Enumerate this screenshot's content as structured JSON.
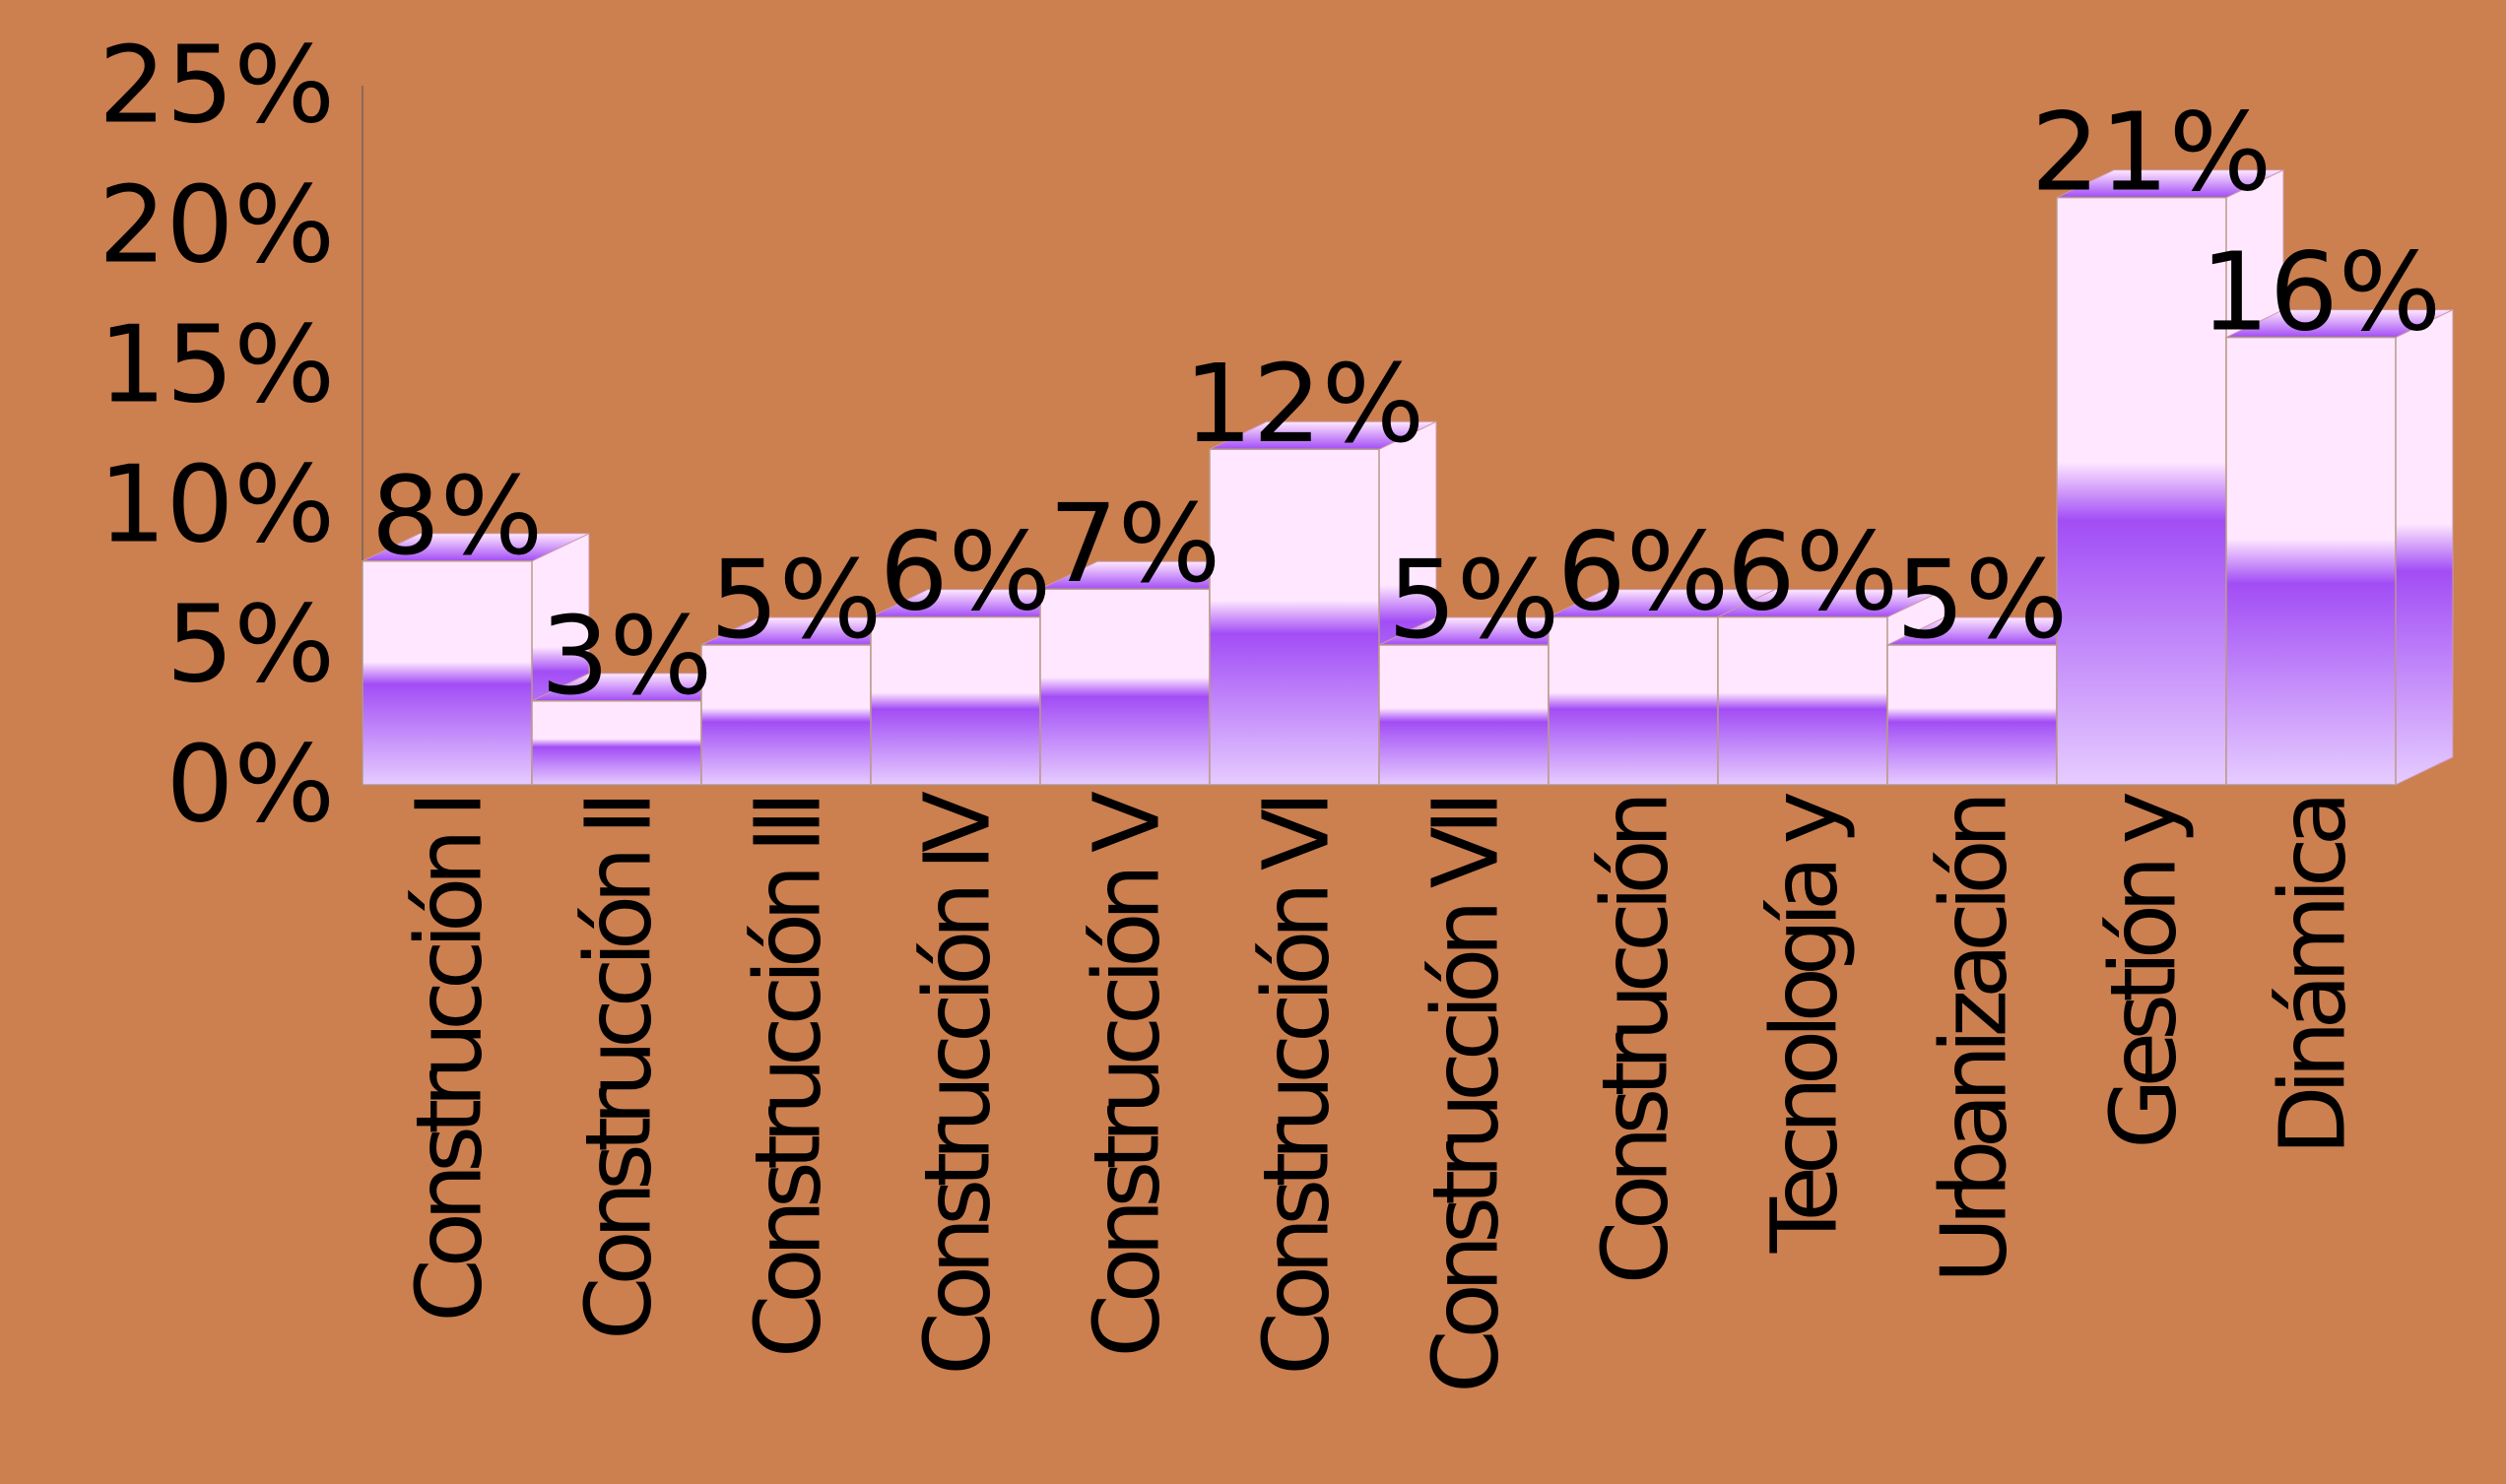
{
  "chart_data": {
    "type": "bar",
    "style": "3d",
    "categories": [
      "Construcción I",
      "Construcción II",
      "Construcción III",
      "Construcción IV",
      "Construcción V",
      "Construcción VI",
      "Construcción VII",
      "Construcción",
      "Tecnología y",
      "Urbanización",
      "Gestión y",
      "Dinámica"
    ],
    "values": [
      8,
      3,
      5,
      6,
      7,
      12,
      5,
      6,
      6,
      5,
      21,
      16
    ],
    "data_labels": [
      "8%",
      "3%",
      "5%",
      "6%",
      "7%",
      "12%",
      "5%",
      "6%",
      "6%",
      "5%",
      "21%",
      "16%"
    ],
    "ylim": [
      0,
      25
    ],
    "yticks": [
      "0%",
      "5%",
      "10%",
      "15%",
      "20%",
      "25%"
    ],
    "ytick_values": [
      0,
      5,
      10,
      15,
      20,
      25
    ],
    "title": "",
    "xlabel": "",
    "ylabel": "",
    "grid": false,
    "legend": "none",
    "colors": {
      "background": "#cc7f4f",
      "bar_light": "#ffe8ff",
      "bar_dark": "#a24df5",
      "bar_bottom": "#e6ccff",
      "axis": "#8a6a5a"
    }
  }
}
